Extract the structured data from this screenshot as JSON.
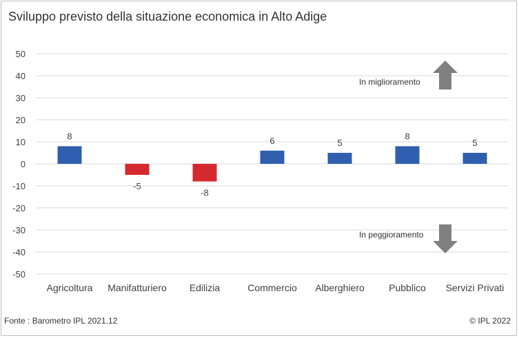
{
  "title": "Sviluppo previsto della situazione economica in Alto Adige",
  "source": "Fonte : Barometro IPL 2021.12",
  "copyright": "© IPL 2022",
  "annotations": {
    "up": "In miglioramento",
    "down": "In peggioramento"
  },
  "colors": {
    "positive": "#2f5fae",
    "negative": "#d42a2f",
    "arrow": "#808080",
    "grid": "#d9d9d9"
  },
  "chart_data": {
    "type": "bar",
    "title": "Sviluppo previsto della situazione economica in Alto Adige",
    "categories": [
      "Agricoltura",
      "Manifatturiero",
      "Edilizia",
      "Commercio",
      "Alberghiero",
      "Pubblico",
      "Servizi Privati"
    ],
    "values": [
      8,
      -5,
      -8,
      6,
      5,
      8,
      5
    ],
    "ylim": [
      -50,
      50
    ],
    "yticks": [
      50,
      40,
      30,
      20,
      10,
      0,
      -10,
      -20,
      -30,
      -40,
      -50
    ],
    "grid": true,
    "legend": "none"
  }
}
